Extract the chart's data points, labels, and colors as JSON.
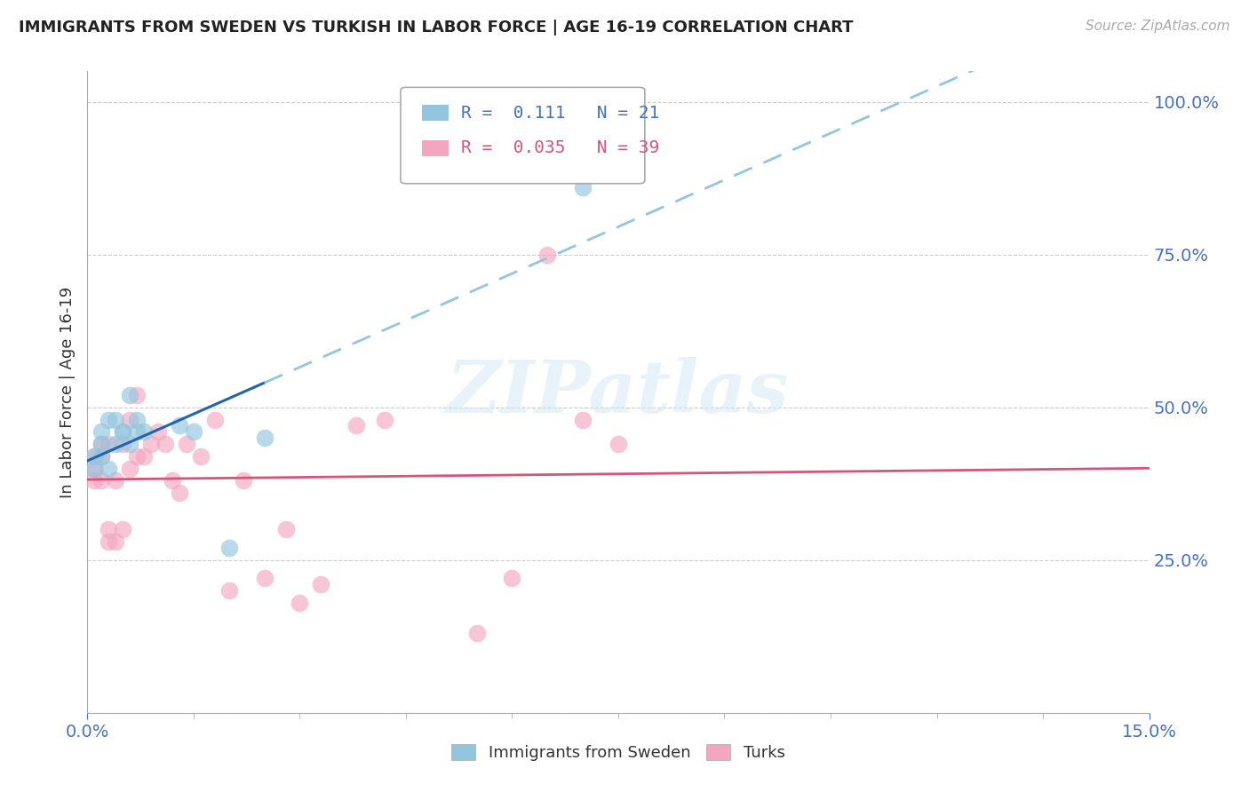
{
  "title": "IMMIGRANTS FROM SWEDEN VS TURKISH IN LABOR FORCE | AGE 16-19 CORRELATION CHART",
  "source": "Source: ZipAtlas.com",
  "ylabel": "In Labor Force | Age 16-19",
  "xlim": [
    0.0,
    0.15
  ],
  "ylim": [
    0.0,
    1.05
  ],
  "sweden_color": "#92c5de",
  "turk_color": "#f4a6c0",
  "sweden_line_color": "#2166ac",
  "turk_line_color": "#d6537a",
  "sweden_dash_color": "#92c5de",
  "sweden_R": 0.111,
  "sweden_N": 21,
  "turk_R": 0.035,
  "turk_N": 39,
  "sweden_x": [
    0.001,
    0.001,
    0.002,
    0.002,
    0.002,
    0.003,
    0.003,
    0.004,
    0.004,
    0.005,
    0.005,
    0.006,
    0.006,
    0.007,
    0.007,
    0.008,
    0.013,
    0.015,
    0.02,
    0.025,
    0.07
  ],
  "sweden_y": [
    0.4,
    0.42,
    0.42,
    0.44,
    0.46,
    0.4,
    0.48,
    0.44,
    0.48,
    0.46,
    0.46,
    0.44,
    0.52,
    0.46,
    0.48,
    0.46,
    0.47,
    0.46,
    0.27,
    0.45,
    0.86
  ],
  "turk_x": [
    0.001,
    0.001,
    0.001,
    0.002,
    0.002,
    0.002,
    0.003,
    0.003,
    0.003,
    0.004,
    0.004,
    0.005,
    0.005,
    0.006,
    0.006,
    0.007,
    0.007,
    0.008,
    0.009,
    0.01,
    0.011,
    0.012,
    0.013,
    0.014,
    0.016,
    0.018,
    0.02,
    0.022,
    0.025,
    0.028,
    0.03,
    0.033,
    0.038,
    0.042,
    0.055,
    0.06,
    0.065,
    0.07,
    0.075
  ],
  "turk_y": [
    0.38,
    0.4,
    0.42,
    0.38,
    0.42,
    0.44,
    0.28,
    0.3,
    0.44,
    0.38,
    0.28,
    0.3,
    0.44,
    0.4,
    0.48,
    0.42,
    0.52,
    0.42,
    0.44,
    0.46,
    0.44,
    0.38,
    0.36,
    0.44,
    0.42,
    0.48,
    0.2,
    0.38,
    0.22,
    0.3,
    0.18,
    0.21,
    0.47,
    0.48,
    0.13,
    0.22,
    0.75,
    0.48,
    0.44
  ],
  "watermark": "ZIPatlas",
  "background_color": "#ffffff",
  "grid_color": "#cccccc"
}
